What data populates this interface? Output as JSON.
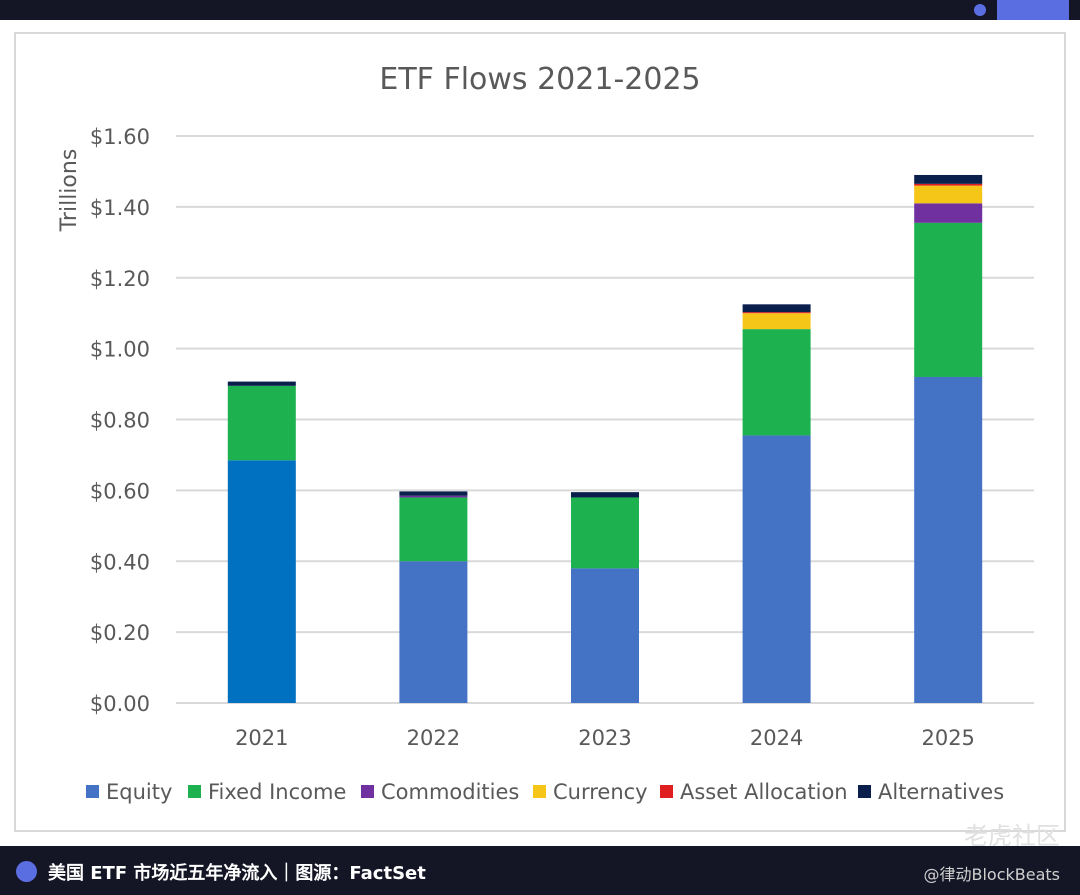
{
  "header": {
    "bar_color": "#141626",
    "accent_color": "#5b6ee1"
  },
  "chart_data": {
    "type": "bar",
    "stacked": true,
    "title": "ETF Flows 2021-2025",
    "ylabel": "Trillions",
    "xlabel": "",
    "categories": [
      "2021",
      "2022",
      "2023",
      "2024",
      "2025"
    ],
    "ylim": [
      0,
      1.6
    ],
    "ytick_values": [
      0,
      0.2,
      0.4,
      0.6,
      0.8,
      1.0,
      1.2,
      1.4,
      1.6
    ],
    "ytick_labels": [
      "$0.00",
      "$0.20",
      "$0.40",
      "$0.60",
      "$0.80",
      "$1.00",
      "$1.20",
      "$1.40",
      "$1.60"
    ],
    "grid": true,
    "legend_position": "bottom",
    "series": [
      {
        "name": "Equity",
        "color": "#4472c4",
        "values": [
          0.685,
          0.4,
          0.38,
          0.755,
          0.92
        ]
      },
      {
        "name": "Fixed Income",
        "color": "#1db14f",
        "values": [
          0.21,
          0.18,
          0.2,
          0.3,
          0.435
        ]
      },
      {
        "name": "Commodities",
        "color": "#7030a0",
        "values": [
          0.0,
          0.005,
          0.0,
          0.0,
          0.055
        ]
      },
      {
        "name": "Currency",
        "color": "#f5c518",
        "values": [
          0.0,
          0.0,
          0.0,
          0.045,
          0.05
        ]
      },
      {
        "name": "Asset Allocation",
        "color": "#e02020",
        "values": [
          0.0,
          0.0,
          0.0,
          0.003,
          0.005
        ]
      },
      {
        "name": "Alternatives",
        "color": "#0b1f4d",
        "values": [
          0.012,
          0.012,
          0.015,
          0.022,
          0.025
        ]
      }
    ],
    "bar_color_overrides": [
      {
        "category": "2021",
        "series": "Equity",
        "color": "#0070c0"
      }
    ]
  },
  "watermark": "老虎社区",
  "footer": {
    "caption": "美国 ETF 市场近五年净流入｜图源：FactSet",
    "credit": "@律动BlockBeats"
  }
}
